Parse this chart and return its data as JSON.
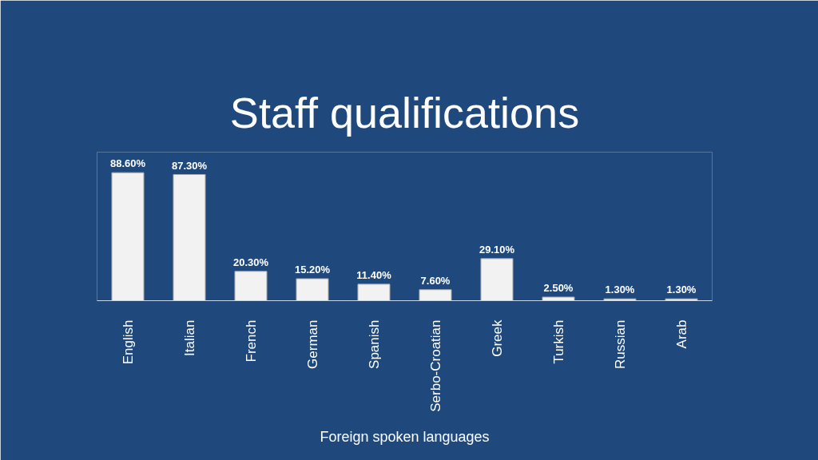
{
  "chart_data": {
    "type": "bar",
    "title": "Staff qualifications",
    "xlabel": "Foreign spoken languages",
    "categories": [
      "English",
      "Italian",
      "French",
      "German",
      "Spanish",
      "Serbo-Croatian",
      "Greek",
      "Turkish",
      "Russian",
      "Arab"
    ],
    "values": [
      88.6,
      87.3,
      20.3,
      15.2,
      11.4,
      7.6,
      29.1,
      2.5,
      1.3,
      1.3
    ],
    "value_labels": [
      "88.60%",
      "87.30%",
      "20.30%",
      "15.20%",
      "11.40%",
      "7.60%",
      "29.10%",
      "2.50%",
      "1.30%",
      "1.30%"
    ],
    "color": "#f2f2f2"
  }
}
